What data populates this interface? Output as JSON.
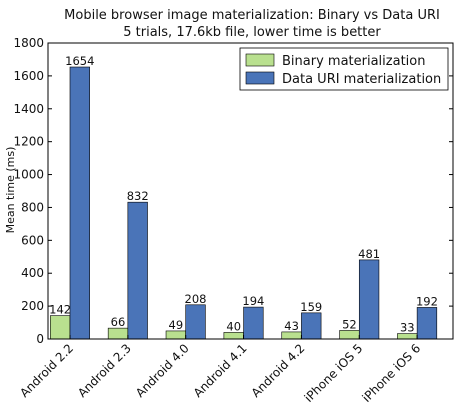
{
  "chart_data": {
    "type": "bar",
    "title": "Mobile browser image materialization: Binary vs Data URI",
    "subtitle": "5 trials, 17.6kb file, lower time is better",
    "xlabel": "",
    "ylabel": "Mean time (ms)",
    "ylim": [
      0,
      1800
    ],
    "yticks": [
      0,
      200,
      400,
      600,
      800,
      1000,
      1200,
      1400,
      1600,
      1800
    ],
    "categories": [
      "Android 2.2",
      "Android 2.3",
      "Android 4.0",
      "Android 4.1",
      "Android 4.2",
      "iPhone iOS 5",
      "iPhone iOS 6"
    ],
    "series": [
      {
        "name": "Binary materialization",
        "color": "#b9e08f",
        "values": [
          142,
          66,
          49,
          40,
          43,
          52,
          33
        ]
      },
      {
        "name": "Data URI materialization",
        "color": "#4a74b8",
        "values": [
          1654,
          832,
          208,
          194,
          159,
          481,
          192
        ]
      }
    ],
    "legend_position": "top-right",
    "grid": false
  }
}
